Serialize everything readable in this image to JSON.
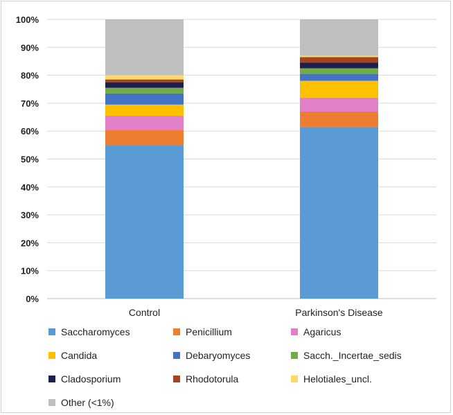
{
  "chart_data": {
    "type": "bar",
    "stacked": true,
    "percent": true,
    "title": "",
    "xlabel": "",
    "ylabel": "",
    "ylim": [
      0,
      100
    ],
    "yticks": [
      "0%",
      "10%",
      "20%",
      "30%",
      "40%",
      "50%",
      "60%",
      "70%",
      "80%",
      "90%",
      "100%"
    ],
    "categories": [
      "Control",
      "Parkinson's Disease"
    ],
    "series": [
      {
        "name": "Saccharomyces",
        "color": "#5b9bd5",
        "values": [
          55,
          61.5
        ]
      },
      {
        "name": "Penicillium",
        "color": "#ed7d31",
        "values": [
          5.5,
          5.5
        ]
      },
      {
        "name": "Agaricus",
        "color": "#e17fc8",
        "values": [
          5,
          5
        ]
      },
      {
        "name": "Candida",
        "color": "#ffc000",
        "values": [
          4,
          6
        ]
      },
      {
        "name": "Debaryomyces",
        "color": "#4472c4",
        "values": [
          4,
          2.5
        ]
      },
      {
        "name": "Sacch._Incertae_sedis",
        "color": "#70ad47",
        "values": [
          2,
          2
        ]
      },
      {
        "name": "Cladosporium",
        "color": "#1f1f4f",
        "values": [
          2,
          2
        ]
      },
      {
        "name": "Rhodotorula",
        "color": "#a5461f",
        "values": [
          1,
          2
        ]
      },
      {
        "name": "Helotiales_uncl.",
        "color": "#ffd966",
        "values": [
          1.5,
          0.5
        ]
      },
      {
        "name": "Other (<1%)",
        "color": "#bfbfbf",
        "values": [
          20,
          13
        ]
      }
    ],
    "grid": true,
    "legend_position": "bottom"
  }
}
